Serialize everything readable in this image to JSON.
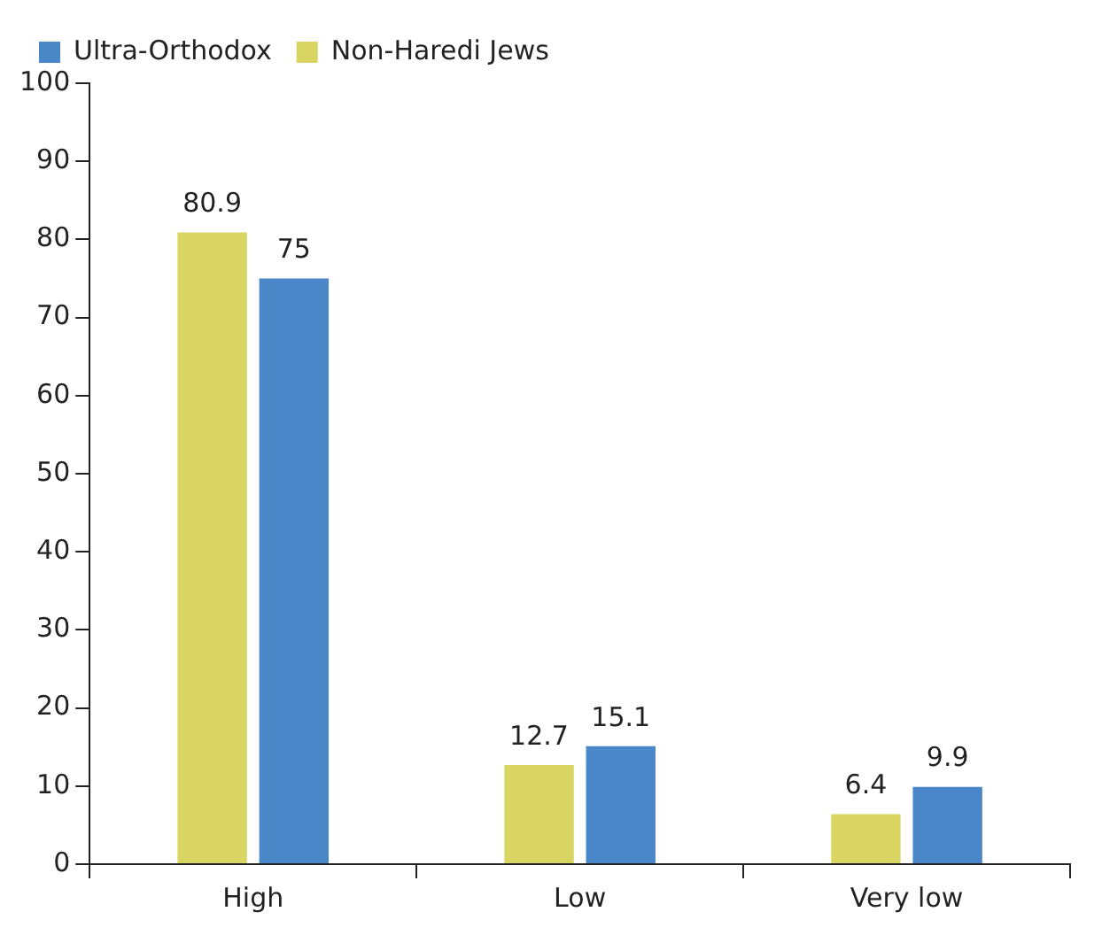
{
  "chart_data": {
    "type": "bar",
    "categories": [
      "High",
      "Low",
      "Very low"
    ],
    "series": [
      {
        "name": "Non-Haredi Jews",
        "color": "#d8d563",
        "values": [
          80.9,
          12.7,
          6.4
        ]
      },
      {
        "name": "Ultra-Orthodox",
        "color": "#4a87c8",
        "values": [
          75,
          15.1,
          9.9
        ]
      }
    ],
    "ylim": [
      0,
      100
    ],
    "yticks": [
      0,
      10,
      20,
      30,
      40,
      50,
      60,
      70,
      80,
      90,
      100
    ],
    "grid": false,
    "legend": "top left",
    "data_labels": true
  }
}
